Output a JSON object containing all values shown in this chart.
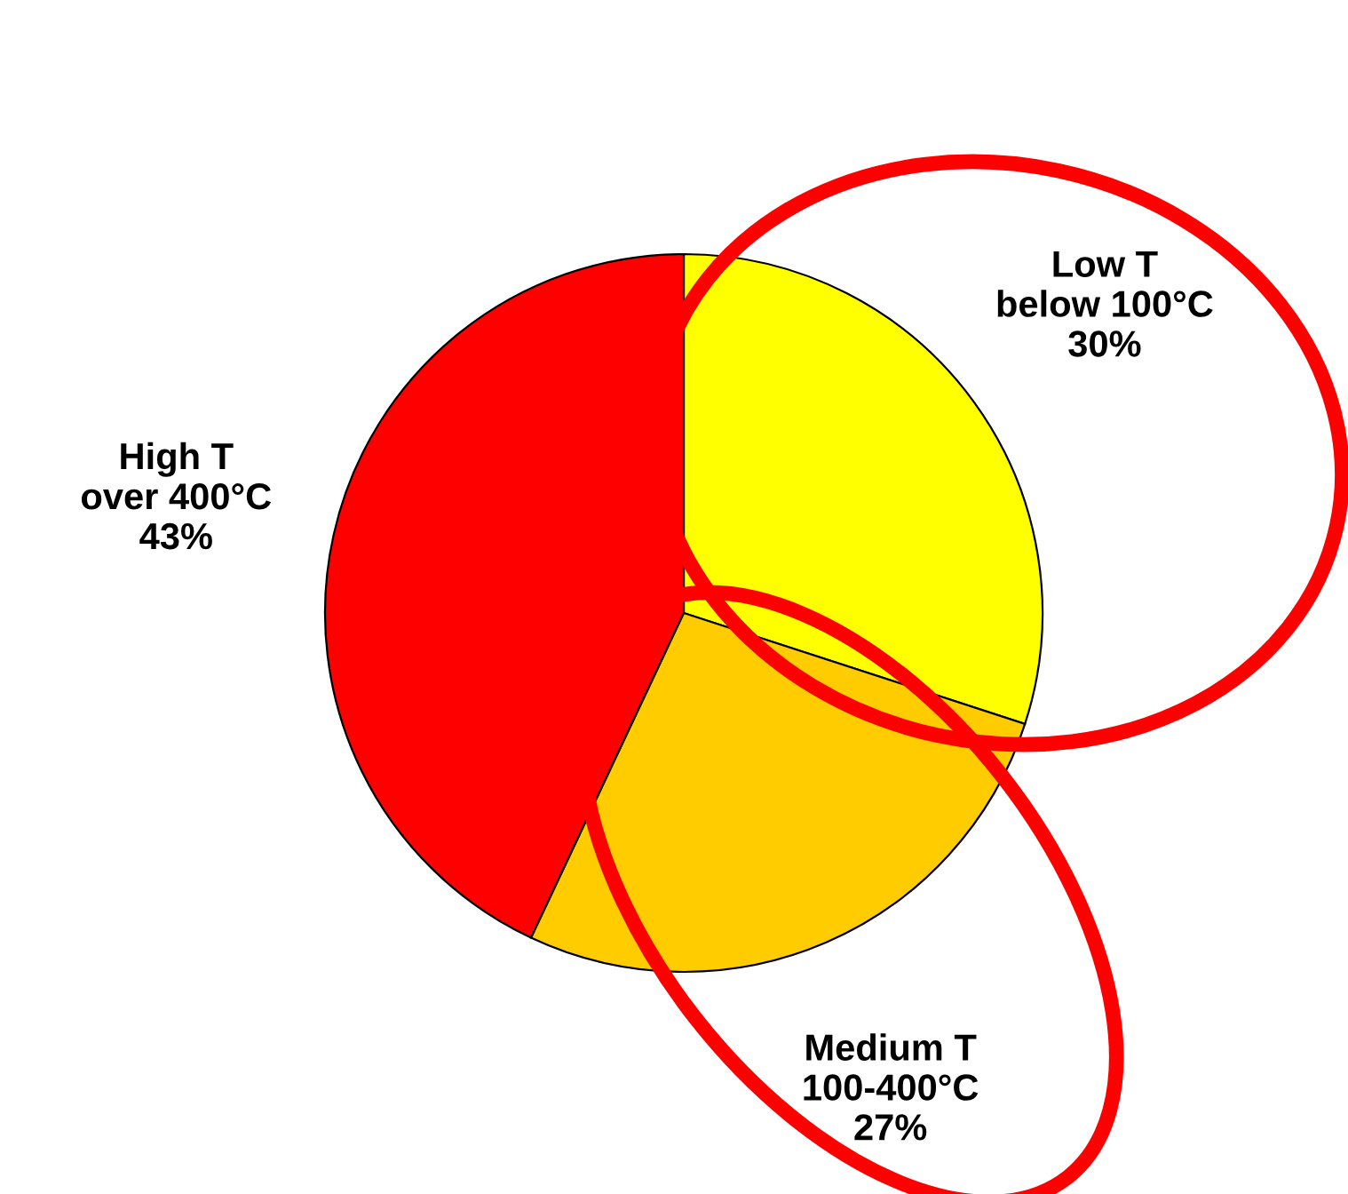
{
  "chart_data": {
    "type": "pie",
    "categories": [
      "Low T\nbelow 100°C",
      "Medium T\n100-400°C",
      "High T\nover 400°C"
    ],
    "values": [
      30,
      27,
      43
    ],
    "value_labels": [
      "30%",
      "27%",
      "43%"
    ],
    "colors": [
      "#ffff00",
      "#ffcc00",
      "#ff0000"
    ],
    "legend": false
  }
}
